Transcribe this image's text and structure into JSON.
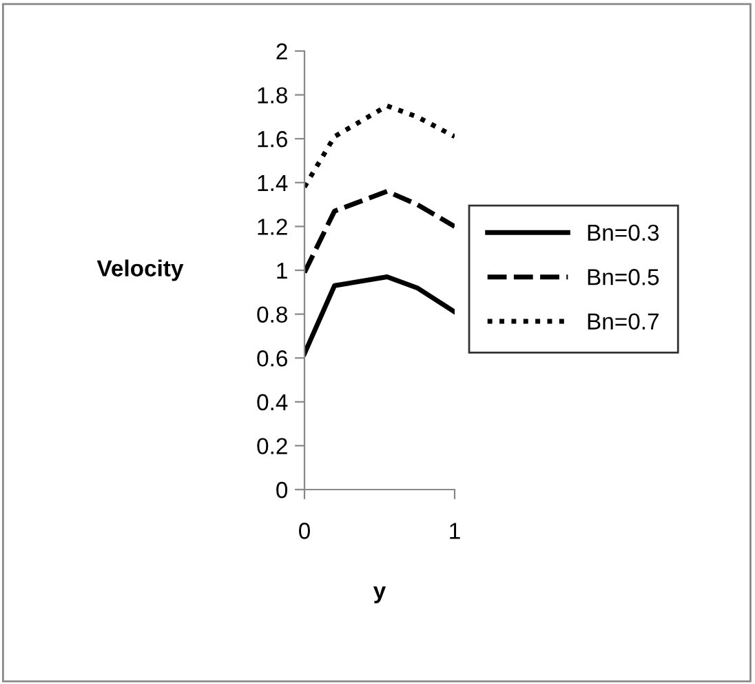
{
  "chart_data": {
    "type": "line",
    "xlabel": "y",
    "ylabel": "Velocity",
    "xlim": [
      0,
      1
    ],
    "xticks": [
      0,
      1
    ],
    "ylim": [
      0,
      2
    ],
    "yticks": [
      0,
      0.2,
      0.4,
      0.6,
      0.8,
      1,
      1.2,
      1.4,
      1.6,
      1.8,
      2
    ],
    "grid": false,
    "legend": "right",
    "x": [
      0,
      0.2,
      0.55,
      0.75,
      1
    ],
    "series": [
      {
        "name": "Bn=0.3",
        "color": "#000000",
        "line_style": "solid",
        "values": [
          0.62,
          0.93,
          0.97,
          0.92,
          0.81
        ]
      },
      {
        "name": "Bn=0.5",
        "color": "#000000",
        "line_style": "dashed",
        "values": [
          0.99,
          1.27,
          1.36,
          1.3,
          1.2
        ]
      },
      {
        "name": "Bn=0.7",
        "color": "#000000",
        "line_style": "dotted",
        "values": [
          1.38,
          1.61,
          1.75,
          1.7,
          1.61
        ]
      }
    ]
  }
}
